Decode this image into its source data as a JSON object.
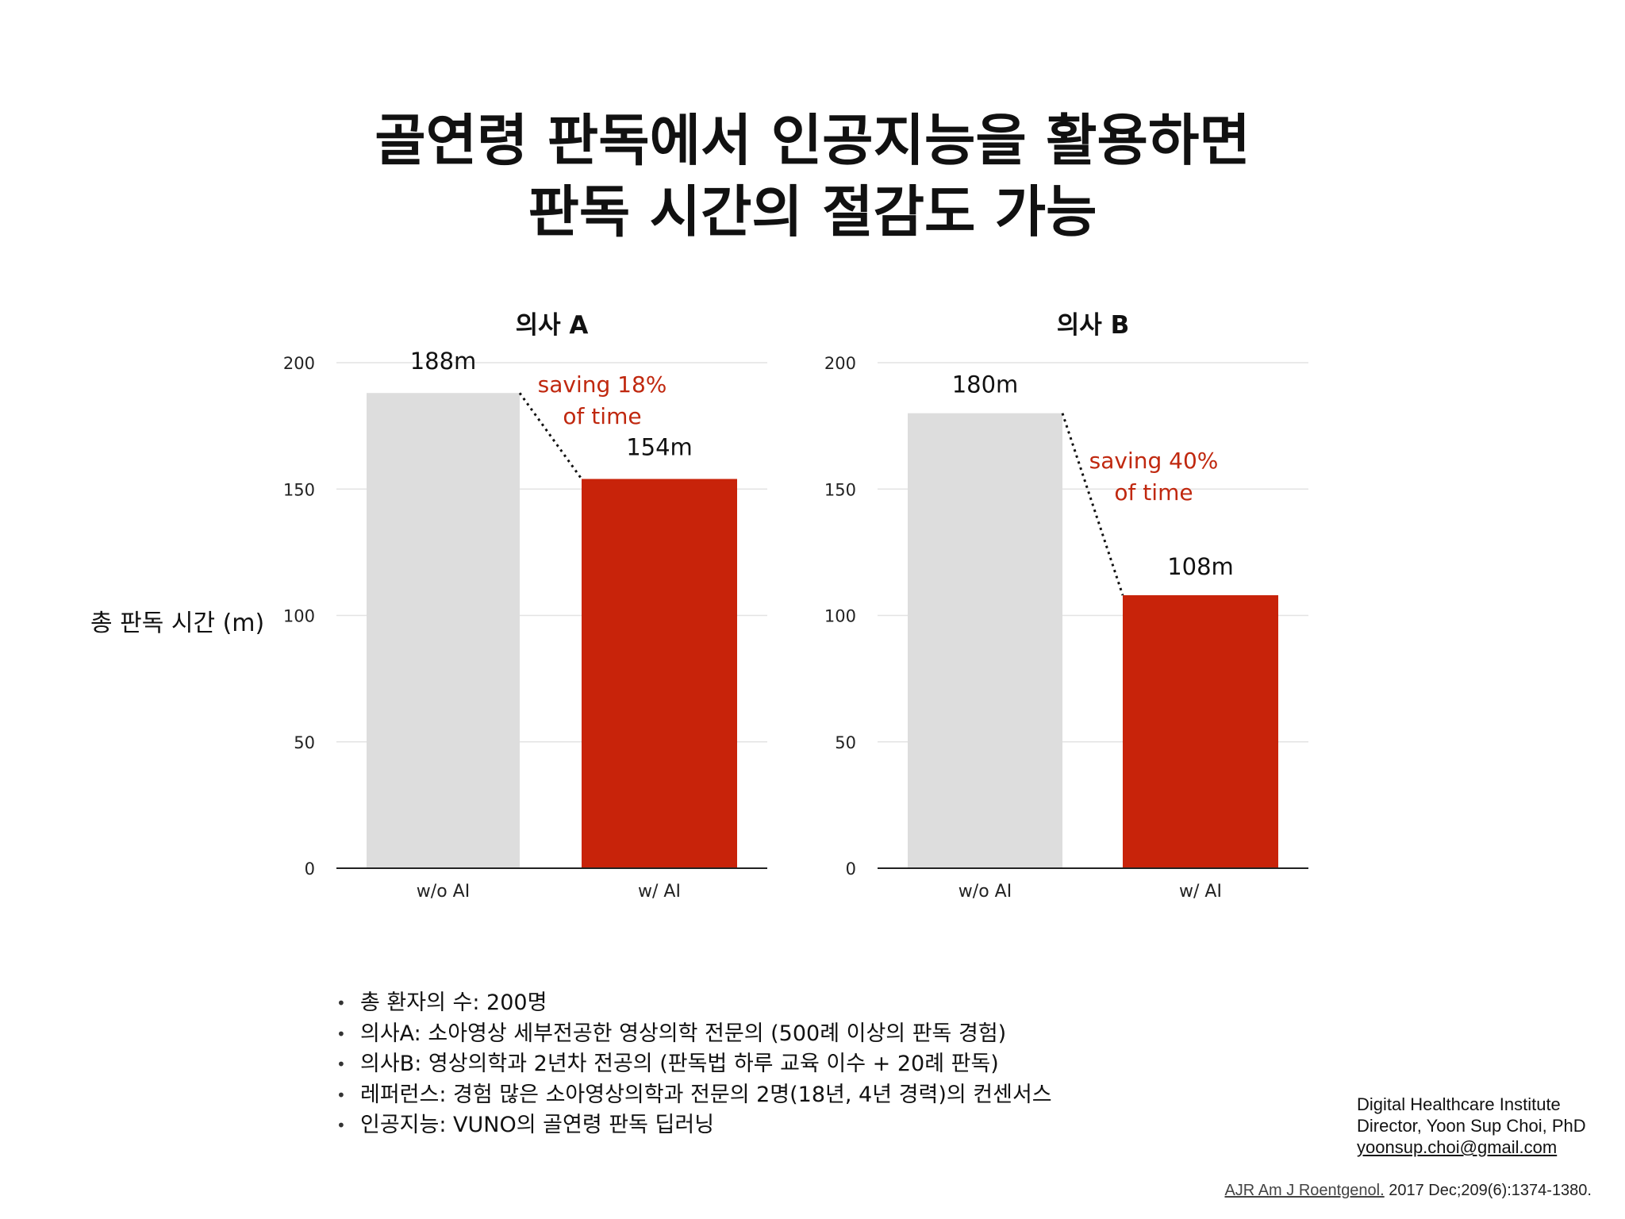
{
  "title": {
    "line1": "골연령 판독에서 인공지능을 활용하면",
    "line2": "판독 시간의 절감도 가능"
  },
  "ylabel": "총 판독 시간 (m)",
  "colors": {
    "without_ai": "#dddddd",
    "with_ai": "#c8230a",
    "saving_text": "#c0280f",
    "gridline": "#e3e3e3",
    "axis": "#222222"
  },
  "chart_data": [
    {
      "type": "bar",
      "title": "의사 A",
      "categories": [
        "w/o AI",
        "w/ AI"
      ],
      "values": [
        188,
        154
      ],
      "data_labels": [
        "188m",
        "154m"
      ],
      "ylim": [
        0,
        200
      ],
      "yticks": [
        0,
        50,
        100,
        150,
        200
      ],
      "ylabel": "총 판독 시간 (m)",
      "grid": true,
      "annotation": [
        "saving 18%",
        "of time"
      ]
    },
    {
      "type": "bar",
      "title": "의사 B",
      "categories": [
        "w/o AI",
        "w/ AI"
      ],
      "values": [
        180,
        108
      ],
      "data_labels": [
        "180m",
        "108m"
      ],
      "ylim": [
        0,
        200
      ],
      "yticks": [
        0,
        50,
        100,
        150,
        200
      ],
      "ylabel": "",
      "grid": true,
      "annotation": [
        "saving 40%",
        "of time"
      ]
    }
  ],
  "notes": [
    "총 환자의 수: 200명",
    "의사A: 소아영상 세부전공한 영상의학 전문의 (500례 이상의 판독 경험)",
    "의사B: 영상의학과 2년차 전공의 (판독법 하루 교육 이수 + 20례 판독)",
    "레퍼런스: 경험 많은 소아영상의학과 전문의 2명(18년, 4년 경력)의 컨센서스",
    "인공지능:  VUNO의 골연령 판독 딥러닝"
  ],
  "credit": {
    "line1": "Digital Healthcare Institute",
    "line2": "Director, Yoon Sup Choi, PhD",
    "email": "yoonsup.choi@gmail.com"
  },
  "reference": {
    "journal": "AJR Am J Roentgenol.",
    "details": " 2017 Dec;209(6):1374-1380."
  }
}
